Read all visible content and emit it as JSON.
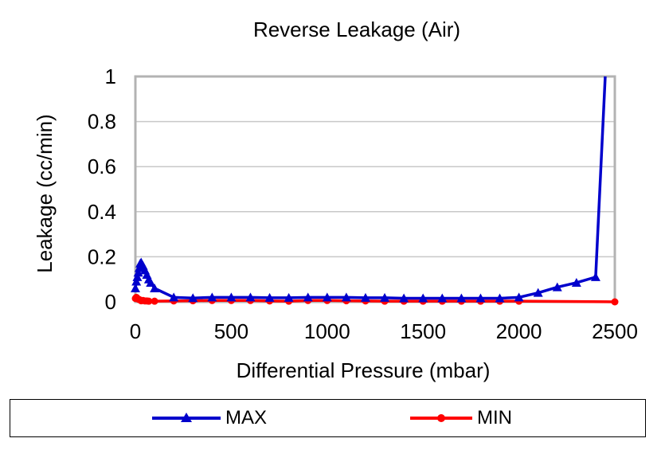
{
  "chart_data": {
    "type": "line",
    "title": "Reverse Leakage (Air)",
    "xlabel": "Differential Pressure (mbar)",
    "ylabel": "Leakage (cc/min)",
    "xlim": [
      0,
      2500
    ],
    "ylim": [
      0,
      1
    ],
    "x_ticks": [
      0,
      500,
      1000,
      1500,
      2000,
      2500
    ],
    "x_tick_labels": [
      "0",
      "500",
      "1000",
      "1500",
      "2000",
      "2500"
    ],
    "y_ticks": [
      0,
      0.2,
      0.4,
      0.6,
      0.8,
      1
    ],
    "y_tick_labels": [
      "0",
      "0.2",
      "0.4",
      "0.6",
      "0.8",
      "1"
    ],
    "grid": "horizontal",
    "legend_position": "bottom",
    "series": [
      {
        "name": "MAX",
        "color": "#0000cc",
        "marker": "triangle",
        "x": [
          0,
          5,
          10,
          15,
          20,
          25,
          30,
          40,
          50,
          60,
          70,
          80,
          100,
          200,
          300,
          400,
          500,
          600,
          700,
          800,
          900,
          1000,
          1100,
          1200,
          1300,
          1400,
          1500,
          1600,
          1700,
          1800,
          1900,
          2000,
          2100,
          2200,
          2300,
          2400,
          2450
        ],
        "values": [
          0.06,
          0.09,
          0.11,
          0.13,
          0.15,
          0.17,
          0.175,
          0.16,
          0.14,
          0.12,
          0.1,
          0.085,
          0.06,
          0.02,
          0.017,
          0.02,
          0.02,
          0.02,
          0.018,
          0.018,
          0.02,
          0.02,
          0.02,
          0.018,
          0.018,
          0.016,
          0.016,
          0.016,
          0.016,
          0.016,
          0.016,
          0.02,
          0.04,
          0.065,
          0.085,
          0.11,
          1.0
        ]
      },
      {
        "name": "MIN",
        "color": "#ff0000",
        "marker": "circle",
        "x": [
          0,
          5,
          10,
          15,
          20,
          25,
          30,
          40,
          50,
          60,
          70,
          100,
          200,
          300,
          400,
          500,
          600,
          700,
          800,
          900,
          1000,
          1100,
          1200,
          1300,
          1400,
          1500,
          1600,
          1700,
          1800,
          1900,
          2000,
          2500
        ],
        "values": [
          0.015,
          0.02,
          0.015,
          0.012,
          0.01,
          0.008,
          0.005,
          0.006,
          0.004,
          0.004,
          0.003,
          0.003,
          0.004,
          0.005,
          0.006,
          0.006,
          0.006,
          0.004,
          0.003,
          0.006,
          0.006,
          0.005,
          0.004,
          0.003,
          0.003,
          0.003,
          0.003,
          0.003,
          0.003,
          0.003,
          0.003,
          0.0
        ]
      }
    ]
  }
}
